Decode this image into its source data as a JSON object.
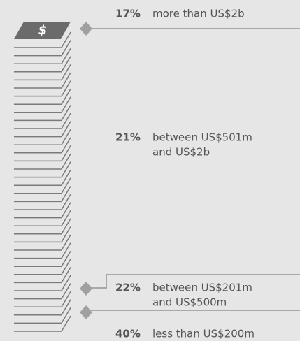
{
  "items": [
    {
      "percent": "17%",
      "label": [
        "more than US$2b"
      ]
    },
    {
      "percent": "21%",
      "label": [
        "between US$501m",
        "and US$2b"
      ]
    },
    {
      "percent": "22%",
      "label": [
        "between US$201m",
        "and US$500m"
      ]
    },
    {
      "percent": "40%",
      "label": [
        "less than US$200m"
      ]
    }
  ],
  "icon": "$"
}
